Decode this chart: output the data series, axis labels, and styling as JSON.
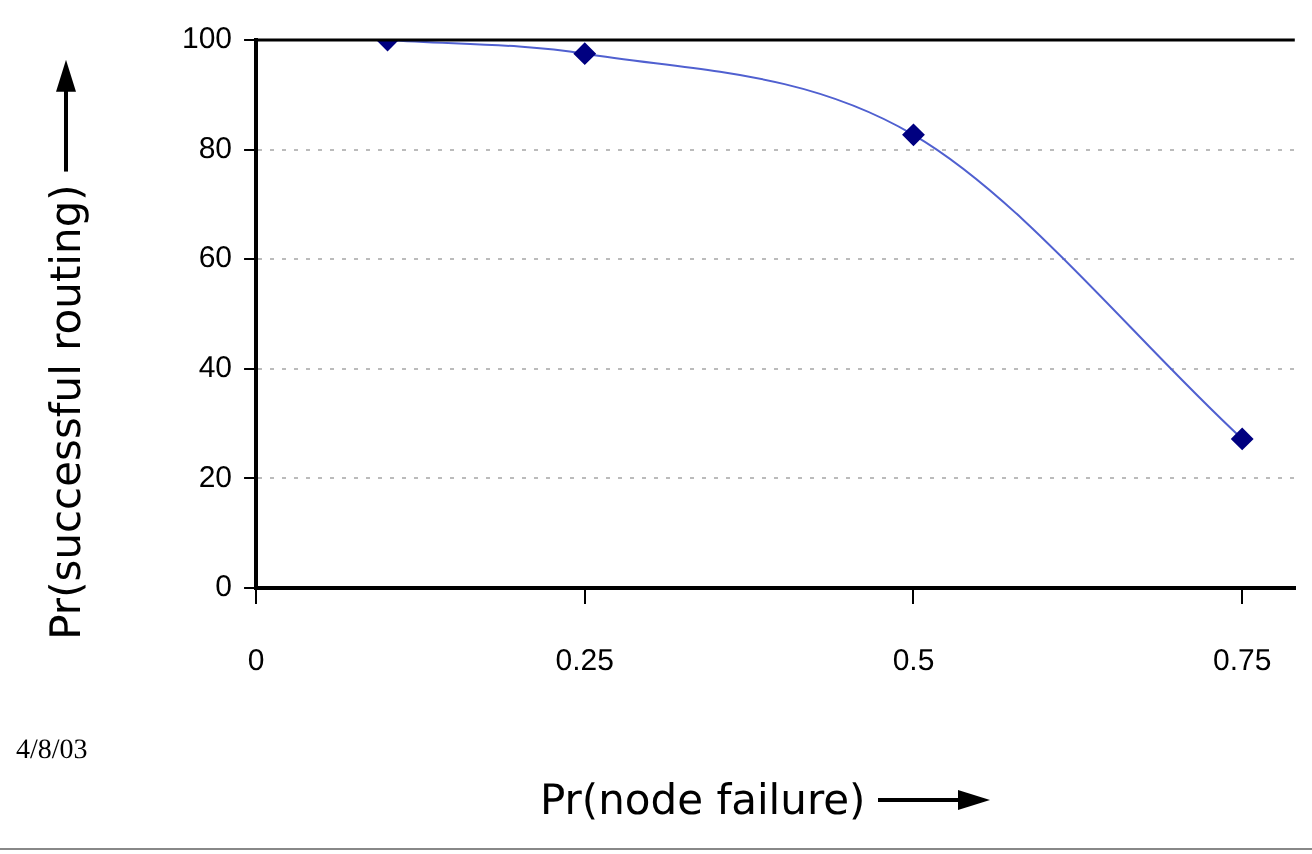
{
  "chart_data": {
    "type": "line",
    "xlabel": "Pr(node failure)",
    "ylabel": "Pr(successful routing)",
    "annotations": [
      "4/8/03"
    ],
    "x": [
      0.1,
      0.25,
      0.5,
      0.75
    ],
    "series": [
      {
        "color": "#000080",
        "values": [
          100,
          97.5,
          82.7,
          27.2
        ]
      }
    ],
    "xlim": [
      0,
      0.79
    ],
    "xticks": [
      0,
      0.25,
      0.5,
      0.75
    ],
    "ylim": [
      0,
      100
    ],
    "yticks": [
      0,
      20,
      40,
      60,
      80,
      100
    ],
    "grid": "y",
    "legend": false,
    "marker": "diamond",
    "line_style": "solid"
  }
}
